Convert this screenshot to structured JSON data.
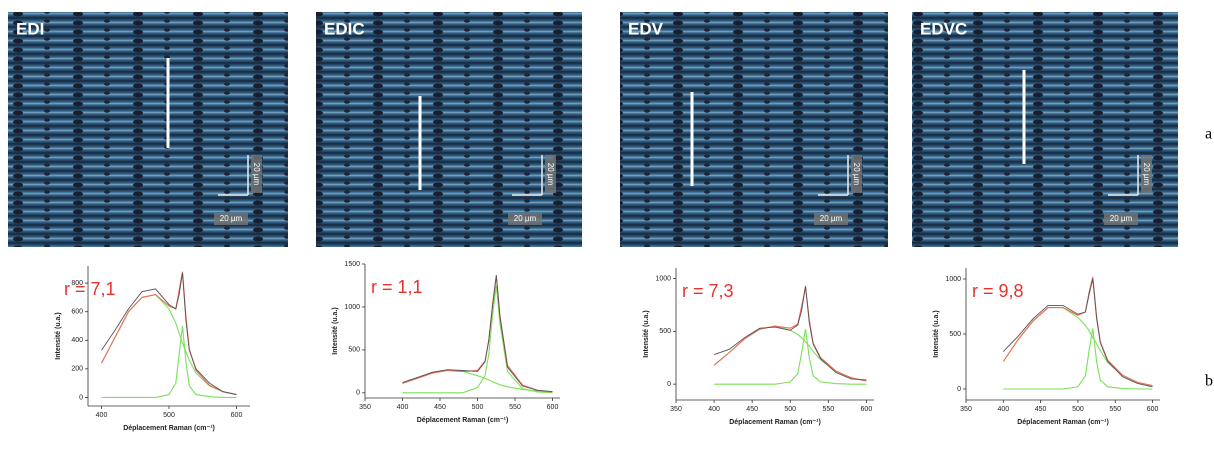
{
  "panels": [
    {
      "label": "EDI",
      "scale_v": "20 µm",
      "scale_h": "20 µm"
    },
    {
      "label": "EDIC",
      "scale_v": "20 µm",
      "scale_h": "20 µm"
    },
    {
      "label": "EDV",
      "scale_v": "20 µm",
      "scale_h": "20 µm"
    },
    {
      "label": "EDVC",
      "scale_v": "20 µm",
      "scale_h": "20 µm"
    }
  ],
  "row_labels": [
    "a",
    "b"
  ],
  "chart_data": [
    {
      "type": "line",
      "annotation": "r = 7,1",
      "xlabel": "Déplacement Raman (cm⁻¹)",
      "ylabel": "Intensité (u.a.)",
      "xlim": [
        380,
        620
      ],
      "xticks": [
        400,
        500,
        600
      ],
      "ylim": [
        -60,
        920
      ],
      "yticks": [
        0,
        200,
        400,
        600,
        800
      ],
      "x": [
        400,
        420,
        440,
        460,
        480,
        500,
        510,
        515,
        520,
        525,
        530,
        540,
        560,
        580,
        600
      ],
      "series": [
        {
          "color": "#555555",
          "values": [
            330,
            470,
            620,
            740,
            760,
            650,
            620,
            720,
            870,
            540,
            330,
            200,
            100,
            40,
            20
          ]
        },
        {
          "color": "#f06a5e",
          "values": [
            240,
            420,
            600,
            700,
            720,
            640,
            620,
            750,
            880,
            570,
            340,
            190,
            85,
            40,
            20
          ]
        },
        {
          "color": "#7be05a",
          "values": [
            240,
            420,
            600,
            700,
            720,
            620,
            520,
            450,
            380,
            320,
            260,
            170,
            80,
            40,
            20
          ]
        },
        {
          "color": "#7be05a",
          "values": [
            0,
            0,
            0,
            0,
            0,
            20,
            100,
            300,
            500,
            250,
            80,
            20,
            5,
            0,
            0
          ]
        }
      ]
    },
    {
      "type": "line",
      "annotation": "r = 1,1",
      "xlabel": "Déplacement Raman (cm⁻¹)",
      "ylabel": "Intensité (u.a.)",
      "xlim": [
        350,
        610
      ],
      "xticks": [
        350,
        400,
        450,
        500,
        550,
        600
      ],
      "ylim": [
        -60,
        1500
      ],
      "yticks": [
        0,
        500,
        1000,
        1500
      ],
      "x": [
        400,
        420,
        440,
        460,
        480,
        500,
        510,
        515,
        520,
        525,
        530,
        540,
        560,
        580,
        600
      ],
      "series": [
        {
          "color": "#555555",
          "values": [
            120,
            180,
            240,
            270,
            260,
            250,
            360,
            620,
            1000,
            1370,
            880,
            300,
            80,
            30,
            15
          ]
        },
        {
          "color": "#f06a5e",
          "values": [
            110,
            170,
            230,
            260,
            250,
            260,
            370,
            600,
            1030,
            1360,
            895,
            320,
            90,
            30,
            10
          ]
        },
        {
          "color": "#7be05a",
          "values": [
            110,
            170,
            230,
            260,
            250,
            200,
            170,
            150,
            130,
            110,
            95,
            70,
            40,
            20,
            10
          ]
        },
        {
          "color": "#7be05a",
          "values": [
            0,
            0,
            0,
            0,
            0,
            60,
            200,
            450,
            900,
            1250,
            800,
            250,
            50,
            10,
            0
          ]
        }
      ]
    },
    {
      "type": "line",
      "annotation": "r = 7,3",
      "xlabel": "Déplacement Raman (cm⁻¹)",
      "ylabel": "Intensité (u.a.)",
      "xlim": [
        350,
        610
      ],
      "xticks": [
        350,
        400,
        450,
        500,
        550,
        600
      ],
      "ylim": [
        -150,
        1100
      ],
      "yticks": [
        0,
        500,
        1000
      ],
      "x": [
        400,
        420,
        440,
        460,
        480,
        500,
        510,
        515,
        520,
        525,
        530,
        540,
        560,
        580,
        600
      ],
      "series": [
        {
          "color": "#555555",
          "values": [
            280,
            330,
            440,
            530,
            540,
            510,
            560,
            700,
            930,
            580,
            380,
            240,
            110,
            50,
            40
          ]
        },
        {
          "color": "#f06a5e",
          "values": [
            180,
            300,
            430,
            520,
            550,
            530,
            570,
            740,
            920,
            610,
            390,
            250,
            125,
            60,
            30
          ]
        },
        {
          "color": "#7be05a",
          "values": [
            180,
            300,
            430,
            520,
            550,
            510,
            470,
            440,
            400,
            360,
            310,
            230,
            120,
            60,
            30
          ]
        },
        {
          "color": "#7be05a",
          "values": [
            0,
            0,
            0,
            0,
            0,
            20,
            100,
            300,
            520,
            250,
            80,
            20,
            5,
            0,
            0
          ]
        }
      ]
    },
    {
      "type": "line",
      "annotation": "r = 9,8",
      "xlabel": "Déplacement Raman (cm⁻¹)",
      "ylabel": "Intensité (u.a.)",
      "xlim": [
        350,
        610
      ],
      "xticks": [
        350,
        400,
        450,
        500,
        550,
        600
      ],
      "ylim": [
        -100,
        1100
      ],
      "yticks": [
        0,
        500,
        1000
      ],
      "x": [
        400,
        420,
        440,
        460,
        480,
        500,
        510,
        515,
        520,
        525,
        530,
        540,
        560,
        580,
        600
      ],
      "series": [
        {
          "color": "#555555",
          "values": [
            340,
            480,
            640,
            760,
            760,
            680,
            700,
            860,
            1000,
            640,
            420,
            250,
            110,
            50,
            20
          ]
        },
        {
          "color": "#f06a5e",
          "values": [
            250,
            450,
            620,
            740,
            740,
            670,
            700,
            880,
            1020,
            660,
            430,
            260,
            125,
            60,
            30
          ]
        },
        {
          "color": "#7be05a",
          "values": [
            250,
            450,
            620,
            740,
            740,
            650,
            580,
            530,
            470,
            410,
            350,
            240,
            120,
            60,
            30
          ]
        },
        {
          "color": "#7be05a",
          "values": [
            0,
            0,
            0,
            0,
            0,
            20,
            120,
            350,
            550,
            250,
            80,
            20,
            5,
            0,
            0
          ]
        }
      ]
    }
  ]
}
